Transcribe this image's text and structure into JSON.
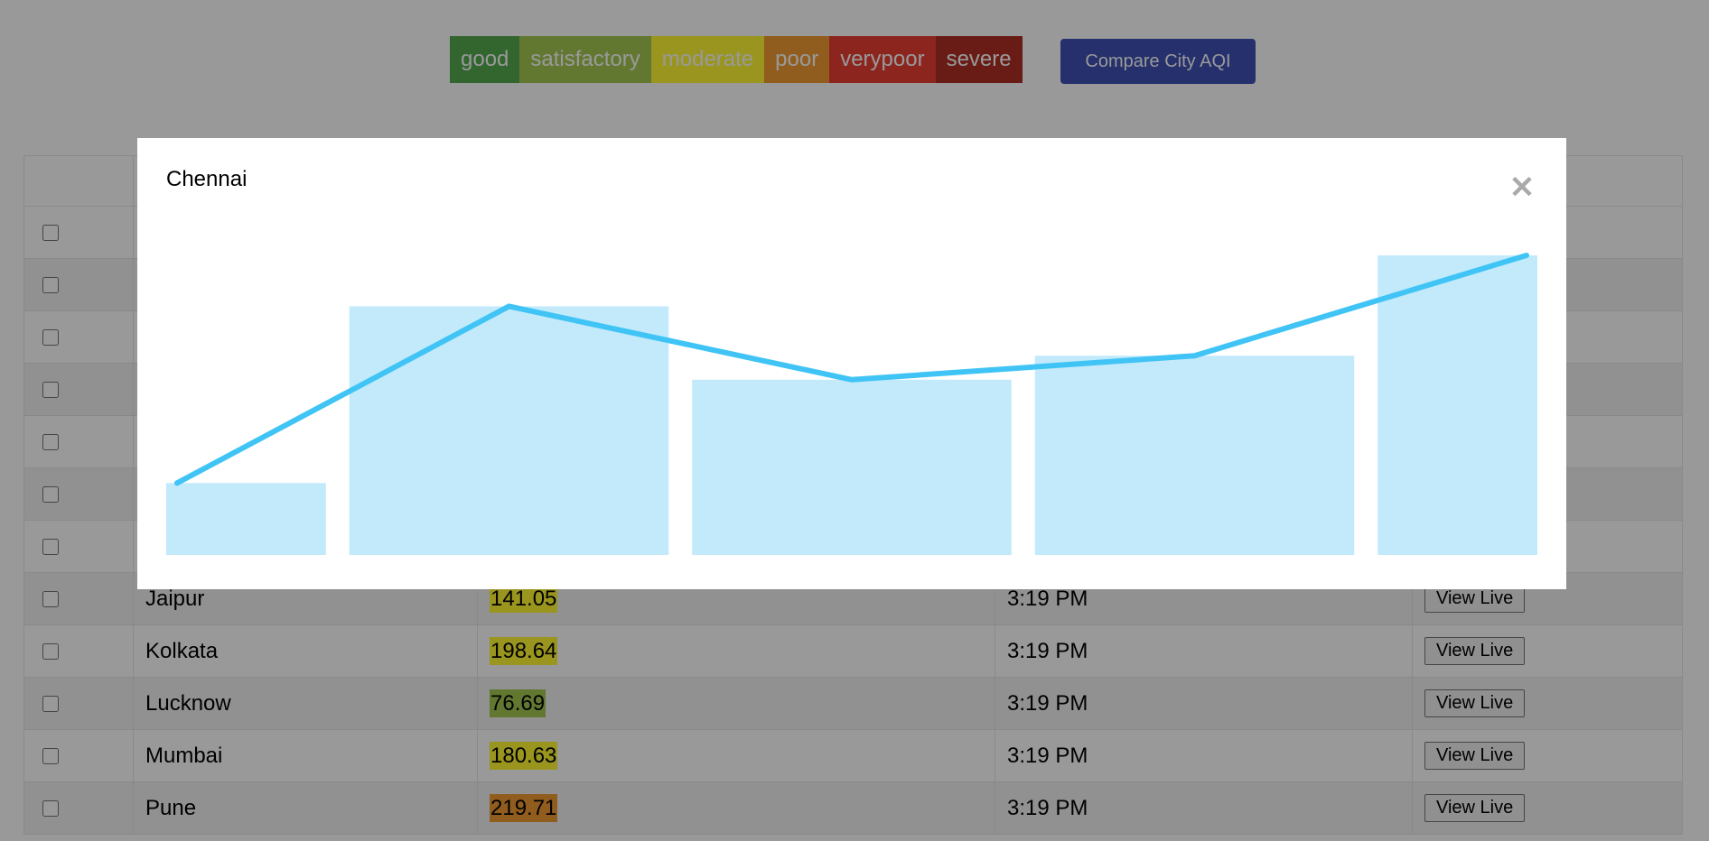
{
  "legend": [
    {
      "label": "good",
      "color": "#55a84f"
    },
    {
      "label": "satisfactory",
      "color": "#a3c853"
    },
    {
      "label": "moderate",
      "color": "#fff833"
    },
    {
      "label": "poor",
      "color": "#f29c33"
    },
    {
      "label": "verypoor",
      "color": "#e93f33"
    },
    {
      "label": "severe",
      "color": "#af2d24"
    }
  ],
  "compare_button": "Compare City AQI",
  "table": {
    "rows": [
      {
        "city": "",
        "aqi": "",
        "aqi_color": "",
        "time": "",
        "action": ""
      },
      {
        "city": "",
        "aqi": "",
        "aqi_color": "",
        "time": "",
        "action": ""
      },
      {
        "city": "",
        "aqi": "",
        "aqi_color": "",
        "time": "",
        "action": ""
      },
      {
        "city": "",
        "aqi": "",
        "aqi_color": "",
        "time": "",
        "action": ""
      },
      {
        "city": "",
        "aqi": "",
        "aqi_color": "",
        "time": "",
        "action": ""
      },
      {
        "city": "",
        "aqi": "",
        "aqi_color": "",
        "time": "",
        "action": ""
      },
      {
        "city": "",
        "aqi": "",
        "aqi_color": "",
        "time": "",
        "action": ""
      },
      {
        "city": "Jaipur",
        "aqi": "141.05",
        "aqi_color": "#fff833",
        "time": "3:19 PM",
        "action": "View Live"
      },
      {
        "city": "Kolkata",
        "aqi": "198.64",
        "aqi_color": "#fff833",
        "time": "3:19 PM",
        "action": "View Live"
      },
      {
        "city": "Lucknow",
        "aqi": "76.69",
        "aqi_color": "#a3c853",
        "time": "3:19 PM",
        "action": "View Live"
      },
      {
        "city": "Mumbai",
        "aqi": "180.63",
        "aqi_color": "#fff833",
        "time": "3:19 PM",
        "action": "View Live"
      },
      {
        "city": "Pune",
        "aqi": "219.71",
        "aqi_color": "#f29c33",
        "time": "3:19 PM",
        "action": "View Live"
      }
    ]
  },
  "modal": {
    "title": "Chennai",
    "close_icon": "close-icon"
  },
  "chart_data": {
    "type": "bar",
    "title": "",
    "values": [
      24,
      83,
      58.5,
      66.5,
      100
    ],
    "ylim": [
      0,
      100
    ],
    "bar_color": "#c2eafb",
    "line_color": "#40c4f5",
    "grid": false
  }
}
